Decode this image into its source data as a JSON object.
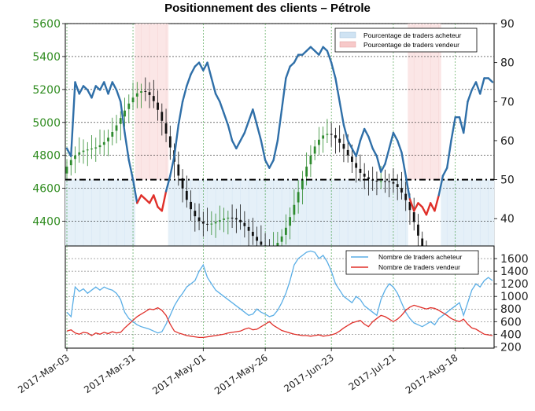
{
  "chart_data": [
    {
      "type": "line",
      "title": "Positionnement des clients – Pétrole",
      "price_axis": {
        "ticks": [
          4400,
          4600,
          4800,
          5000,
          5200,
          5400,
          5600
        ],
        "ylim": [
          4250,
          5600
        ]
      },
      "percent_axis": {
        "ticks": [
          40,
          50,
          60,
          70,
          80,
          90
        ],
        "ylim": [
          33,
          90
        ]
      },
      "x_ticks": [
        "2017-Mar-03",
        "2017-Mar-31",
        "2017-May-01",
        "2017-May-26",
        "2017-Jun-23",
        "2017-Jul-21",
        "2017-Aug-18"
      ],
      "legend": {
        "position": "top-right",
        "entries": [
          "Pourcentage de traders acheteur",
          "Pourcentage de traders vendeur"
        ]
      },
      "reference_line": 50,
      "grid": true,
      "series": [
        {
          "name": "Pourcentage de traders acheteur",
          "color": "#2f6fa8",
          "values": [
            58,
            56,
            75,
            72,
            74,
            73,
            71,
            74,
            73,
            75,
            72,
            75,
            73,
            70,
            62,
            55,
            50,
            44,
            46,
            45,
            44,
            46,
            43,
            42,
            47,
            51,
            56,
            64,
            70,
            74,
            77,
            79,
            80,
            78,
            80,
            76,
            72,
            70,
            67,
            64,
            60,
            58,
            60,
            62,
            65,
            68,
            64,
            60,
            55,
            53,
            55,
            60,
            68,
            76,
            79,
            80,
            82,
            82,
            83,
            84,
            83,
            82,
            84,
            83,
            80,
            76,
            70,
            64,
            60,
            58,
            56,
            60,
            63,
            61,
            58,
            56,
            52,
            54,
            58,
            62,
            60,
            57,
            51,
            45,
            42,
            44,
            43,
            41,
            44,
            42,
            46,
            51,
            53,
            60,
            66,
            66,
            62,
            70,
            73,
            75,
            72,
            76,
            76,
            75
          ]
        },
        {
          "name": "Nombre de traders acheteur",
          "color": "#5aaee6",
          "values": [
            750,
            680,
            1150,
            1080,
            1120,
            1050,
            1100,
            1150,
            1100,
            1150,
            1120,
            1100,
            1050,
            950,
            750,
            650,
            600,
            550,
            520,
            500,
            480,
            450,
            420,
            440,
            560,
            700,
            850,
            960,
            1050,
            1150,
            1200,
            1250,
            1400,
            1500,
            1300,
            1200,
            1100,
            1050,
            1000,
            950,
            900,
            850,
            800,
            750,
            700,
            720,
            800,
            750,
            720,
            680,
            700,
            780,
            900,
            1050,
            1250,
            1500,
            1600,
            1650,
            1700,
            1720,
            1700,
            1600,
            1650,
            1550,
            1400,
            1200,
            1100,
            1000,
            950,
            900,
            1000,
            950,
            850,
            800,
            750,
            700,
            950,
            1100,
            1200,
            1150,
            1050,
            900,
            750,
            650,
            580,
            550,
            520,
            560,
            600,
            550,
            650,
            700,
            750,
            800,
            850,
            900,
            700,
            900,
            1100,
            1200,
            1150,
            1250,
            1300,
            1250
          ]
        },
        {
          "name": "Nombre de traders vendeur",
          "color": "#e0302a",
          "values": [
            450,
            470,
            420,
            400,
            430,
            420,
            380,
            420,
            400,
            430,
            410,
            440,
            420,
            430,
            500,
            560,
            620,
            680,
            720,
            760,
            800,
            790,
            820,
            780,
            700,
            560,
            450,
            420,
            400,
            380,
            370,
            360,
            350,
            350,
            360,
            370,
            380,
            390,
            400,
            420,
            430,
            440,
            450,
            480,
            500,
            470,
            480,
            520,
            560,
            600,
            540,
            500,
            460,
            440,
            420,
            400,
            390,
            380,
            380,
            370,
            380,
            390,
            370,
            380,
            390,
            410,
            450,
            500,
            540,
            580,
            600,
            620,
            560,
            520,
            600,
            650,
            700,
            680,
            640,
            600,
            640,
            700,
            780,
            830,
            860,
            840,
            820,
            800,
            820,
            810,
            780,
            740,
            700,
            650,
            620,
            600,
            640,
            560,
            500,
            480,
            440,
            400,
            390,
            380
          ]
        }
      ],
      "legend_bottom": {
        "position": "top-right",
        "entries": [
          "Nombre de traders acheteur",
          "Nombre de traders vendeur"
        ]
      },
      "count_axis": {
        "ticks": [
          200,
          400,
          600,
          800,
          1000,
          1200,
          1400,
          1600
        ],
        "ylim": [
          180,
          1800
        ]
      }
    }
  ]
}
